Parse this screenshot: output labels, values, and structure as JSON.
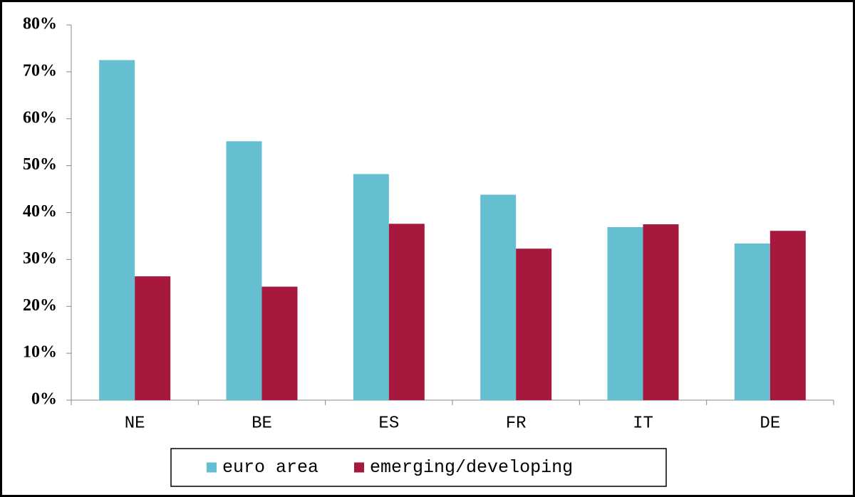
{
  "chart_data": {
    "type": "bar",
    "categories": [
      "NE",
      "BE",
      "ES",
      "FR",
      "IT",
      "DE"
    ],
    "series": [
      {
        "name": "euro area",
        "color": "#66bfd0",
        "values": [
          72.5,
          55.2,
          48.2,
          43.8,
          36.9,
          33.4
        ]
      },
      {
        "name": "emerging/developing",
        "color": "#a6193c",
        "values": [
          26.4,
          24.2,
          37.6,
          32.3,
          37.5,
          36.1
        ]
      }
    ],
    "ylim": [
      0,
      80
    ],
    "yticks": [
      {
        "value": 0,
        "label": "0%"
      },
      {
        "value": 10,
        "label": "10%"
      },
      {
        "value": 20,
        "label": "20%"
      },
      {
        "value": 30,
        "label": "30%"
      },
      {
        "value": 40,
        "label": "40%"
      },
      {
        "value": 50,
        "label": "50%"
      },
      {
        "value": 60,
        "label": "60%"
      },
      {
        "value": 70,
        "label": "70%"
      },
      {
        "value": 80,
        "label": "80%"
      }
    ],
    "grid": false,
    "legend": "bottom"
  }
}
